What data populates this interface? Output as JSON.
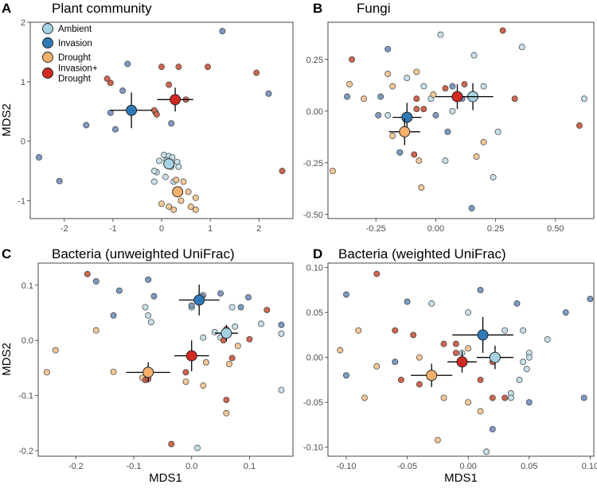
{
  "colors": {
    "Ambient": "#a6d3e4",
    "Invasion": "#2f7ab6",
    "Drought": "#f5b06c",
    "Invasion+Drought": "#d12a22"
  },
  "point_colors": {
    "Ambient": "#c6e0ea",
    "Invasion": "#7d9ac3",
    "Drought": "#f4c896",
    "Invasion+Drought": "#cd6650"
  },
  "legend": {
    "entries": [
      "Ambient",
      "Invasion",
      "Drought",
      "Invasion+\nDrought"
    ]
  },
  "shared_axes": {
    "xlabel": "MDS1",
    "ylabel": "MDS2"
  },
  "chart_data": [
    {
      "id": "A",
      "type": "scatter",
      "letter": "A",
      "title": "Plant community",
      "xlim": [
        -2.7,
        2.7
      ],
      "ylim": [
        -1.3,
        2.0
      ],
      "xticks": [
        -2,
        -1,
        0,
        1,
        2
      ],
      "xtick_labels": [
        "-2",
        "-1",
        "0",
        "1",
        "2"
      ],
      "yticks": [
        -1,
        0,
        1,
        2
      ],
      "ytick_labels": [
        "-1",
        "0",
        "1",
        "2"
      ],
      "points": {
        "Ambient": [
          [
            0.05,
            -0.23
          ],
          [
            0.15,
            -0.25
          ],
          [
            0.22,
            -0.27
          ],
          [
            0.1,
            -0.32
          ],
          [
            -0.05,
            -0.33
          ],
          [
            0.32,
            -0.35
          ],
          [
            0.2,
            -0.43
          ],
          [
            -0.1,
            -0.52
          ],
          [
            -0.15,
            -0.5
          ],
          [
            0.08,
            -0.6
          ],
          [
            -0.15,
            -0.68
          ],
          [
            0.25,
            -0.68
          ],
          [
            0.35,
            -0.43
          ]
        ],
        "Invasion": [
          [
            -2.52,
            -0.27
          ],
          [
            -2.1,
            -0.67
          ],
          [
            -1.55,
            0.27
          ],
          [
            -1.05,
            0.48
          ],
          [
            -0.95,
            0.2
          ],
          [
            -0.8,
            0.85
          ],
          [
            -0.7,
            1.3
          ],
          [
            1.25,
            1.85
          ],
          [
            2.2,
            0.8
          ],
          [
            0.2,
            0.3
          ],
          [
            -0.12,
            0.48
          ]
        ],
        "Drought": [
          [
            0.3,
            -0.65
          ],
          [
            0.45,
            -0.68
          ],
          [
            0.55,
            -0.85
          ],
          [
            0.7,
            -0.95
          ],
          [
            0.0,
            -1.05
          ],
          [
            0.15,
            -1.1
          ],
          [
            0.25,
            -1.15
          ],
          [
            0.6,
            -1.1
          ],
          [
            0.7,
            -1.15
          ],
          [
            0.4,
            -1.0
          ]
        ],
        "Invasion+Drought": [
          [
            -1.12,
            1.05
          ],
          [
            -1.05,
            0.98
          ],
          [
            -0.15,
            0.52
          ],
          [
            -0.1,
            0.45
          ],
          [
            0.0,
            1.25
          ],
          [
            0.35,
            1.25
          ],
          [
            0.95,
            1.25
          ],
          [
            1.95,
            1.15
          ],
          [
            2.48,
            -0.5
          ],
          [
            0.15,
            0.95
          ],
          [
            0.5,
            0.7
          ]
        ]
      },
      "centroids": {
        "Ambient": {
          "x": 0.15,
          "y": -0.38,
          "xerr": 0.0,
          "yerr": 0.0
        },
        "Invasion": {
          "x": -0.62,
          "y": 0.52,
          "xerr": 0.43,
          "yerr": 0.3
        },
        "Drought": {
          "x": 0.33,
          "y": -0.85,
          "xerr": 0.0,
          "yerr": 0.0
        },
        "Invasion+Drought": {
          "x": 0.28,
          "y": 0.7,
          "xerr": 0.37,
          "yerr": 0.2
        }
      }
    },
    {
      "id": "B",
      "type": "scatter",
      "letter": "B",
      "title": "Fungi",
      "xlim": [
        -0.45,
        0.66
      ],
      "ylim": [
        -0.52,
        0.43
      ],
      "xticks": [
        -0.25,
        0.0,
        0.25,
        0.5
      ],
      "xtick_labels": [
        "-0.25",
        "0.00",
        "0.25",
        "0.50"
      ],
      "yticks": [
        -0.5,
        -0.25,
        0.0,
        0.25
      ],
      "ytick_labels": [
        "-0.50",
        "-0.25",
        "0.00",
        "0.25"
      ],
      "points": {
        "Ambient": [
          [
            0.02,
            0.37
          ],
          [
            0.36,
            0.31
          ],
          [
            0.16,
            0.27
          ],
          [
            -0.12,
            0.16
          ],
          [
            -0.05,
            0.12
          ],
          [
            0.2,
            0.12
          ],
          [
            0.62,
            0.06
          ],
          [
            0.07,
            0.0
          ],
          [
            -0.2,
            -0.02
          ],
          [
            0.26,
            -0.1
          ],
          [
            0.04,
            -0.24
          ],
          [
            0.24,
            -0.32
          ],
          [
            -0.02,
            0.06
          ]
        ],
        "Invasion": [
          [
            -0.2,
            0.3
          ],
          [
            -0.37,
            0.07
          ],
          [
            -0.23,
            0.07
          ],
          [
            -0.24,
            -0.02
          ],
          [
            -0.15,
            -0.2
          ],
          [
            0.15,
            -0.47
          ],
          [
            0.07,
            0.12
          ],
          [
            0.11,
            0.06
          ],
          [
            0.05,
            -0.1
          ],
          [
            0.0,
            -0.02
          ]
        ],
        "Drought": [
          [
            -0.36,
            0.13
          ],
          [
            -0.2,
            0.18
          ],
          [
            -0.18,
            0.12
          ],
          [
            -0.3,
            0.06
          ],
          [
            -0.08,
            0.19
          ],
          [
            -0.07,
            -0.24
          ],
          [
            -0.06,
            -0.37
          ],
          [
            -0.43,
            -0.29
          ],
          [
            -0.18,
            -0.12
          ],
          [
            0.2,
            -0.15
          ],
          [
            0.17,
            -0.22
          ],
          [
            -0.01,
            0.08
          ]
        ],
        "Invasion+Drought": [
          [
            -0.35,
            0.25
          ],
          [
            -0.08,
            0.06
          ],
          [
            0.12,
            0.13
          ],
          [
            0.28,
            0.39
          ],
          [
            0.33,
            0.06
          ],
          [
            0.6,
            -0.07
          ],
          [
            0.04,
            0.11
          ],
          [
            -0.08,
            0.01
          ],
          [
            -0.09,
            -0.21
          ],
          [
            -0.05,
            0.01
          ]
        ]
      },
      "centroids": {
        "Ambient": {
          "x": 0.155,
          "y": 0.07,
          "xerr": 0.085,
          "yerr": 0.065
        },
        "Invasion": {
          "x": -0.12,
          "y": -0.03,
          "xerr": 0.06,
          "yerr": 0.07
        },
        "Drought": {
          "x": -0.13,
          "y": -0.1,
          "xerr": 0.065,
          "yerr": 0.065
        },
        "Invasion+Drought": {
          "x": 0.09,
          "y": 0.07,
          "xerr": 0.09,
          "yerr": 0.06
        }
      }
    },
    {
      "id": "C",
      "type": "scatter",
      "letter": "C",
      "title": "Bacteria (unweighted UniFrac)",
      "xlim": [
        -0.265,
        0.175
      ],
      "ylim": [
        -0.21,
        0.14
      ],
      "xticks": [
        -0.2,
        -0.1,
        0.0,
        0.1
      ],
      "xtick_labels": [
        "-0.2",
        "-0.1",
        "0.0",
        "0.1"
      ],
      "yticks": [
        -0.2,
        -0.1,
        0.0,
        0.1
      ],
      "ytick_labels": [
        "-0.2",
        "-0.1",
        "0.0",
        "0.1"
      ],
      "points": {
        "Ambient": [
          [
            -0.08,
            0.06
          ],
          [
            0.0,
            0.06
          ],
          [
            -0.075,
            0.045
          ],
          [
            -0.07,
            0.033
          ],
          [
            0.07,
            0.06
          ],
          [
            0.12,
            0.03
          ],
          [
            0.075,
            0.025
          ],
          [
            0.04,
            0.015
          ],
          [
            0.02,
            0.005
          ],
          [
            0.05,
            0.005
          ],
          [
            0.155,
            0.012
          ],
          [
            0.155,
            -0.09
          ],
          [
            0.01,
            -0.195
          ],
          [
            0.02,
            0.082
          ]
        ],
        "Invasion": [
          [
            -0.165,
            0.107
          ],
          [
            -0.125,
            0.09
          ],
          [
            -0.135,
            0.045
          ],
          [
            -0.075,
            0.11
          ],
          [
            -0.065,
            0.08
          ],
          [
            0.0,
            0.063
          ],
          [
            0.05,
            0.085
          ],
          [
            0.085,
            0.06
          ],
          [
            0.098,
            0.078
          ],
          [
            0.155,
            0.028
          ],
          [
            0.018,
            0.08
          ]
        ],
        "Drought": [
          [
            -0.25,
            -0.058
          ],
          [
            -0.235,
            -0.018
          ],
          [
            -0.165,
            0.018
          ],
          [
            -0.135,
            -0.057
          ],
          [
            -0.085,
            -0.068
          ],
          [
            0.025,
            -0.04
          ],
          [
            0.065,
            -0.043
          ],
          [
            0.02,
            -0.082
          ],
          [
            0.06,
            -0.132
          ],
          [
            -0.01,
            -0.075
          ],
          [
            0.08,
            -0.01
          ]
        ],
        "Invasion+Drought": [
          [
            -0.18,
            0.12
          ],
          [
            -0.08,
            -0.072
          ],
          [
            -0.075,
            -0.07
          ],
          [
            -0.01,
            -0.058
          ],
          [
            0.06,
            -0.108
          ],
          [
            0.07,
            -0.032
          ],
          [
            0.1,
            0.002
          ],
          [
            0.13,
            0.055
          ],
          [
            -0.035,
            -0.188
          ],
          [
            0.055,
            0.0
          ],
          [
            0.06,
            0.02
          ]
        ]
      },
      "centroids": {
        "Ambient": {
          "x": 0.06,
          "y": 0.013,
          "xerr": 0.02,
          "yerr": 0.015
        },
        "Invasion": {
          "x": 0.013,
          "y": 0.073,
          "xerr": 0.035,
          "yerr": 0.028
        },
        "Drought": {
          "x": -0.075,
          "y": -0.058,
          "xerr": 0.038,
          "yerr": 0.018
        },
        "Invasion+Drought": {
          "x": 0.0,
          "y": -0.028,
          "xerr": 0.03,
          "yerr": 0.028
        }
      }
    },
    {
      "id": "D",
      "type": "scatter",
      "letter": "D",
      "title": "Bacteria (weighted UniFrac)",
      "xlim": [
        -0.115,
        0.103
      ],
      "ylim": [
        -0.11,
        0.105
      ],
      "xticks": [
        -0.1,
        -0.05,
        0.0,
        0.05,
        0.1
      ],
      "xtick_labels": [
        "-0.10",
        "-0.05",
        "0.00",
        "0.05",
        "0.10"
      ],
      "yticks": [
        -0.1,
        -0.05,
        0.0,
        0.05,
        0.1
      ],
      "ytick_labels": [
        "-0.10",
        "-0.05",
        "0.00",
        "0.05",
        "0.10"
      ],
      "points": {
        "Ambient": [
          [
            -0.03,
            0.06
          ],
          [
            0.0,
            0.05
          ],
          [
            0.03,
            0.03
          ],
          [
            0.045,
            0.03
          ],
          [
            0.065,
            0.02
          ],
          [
            0.05,
            0.005
          ],
          [
            0.05,
            0.0
          ],
          [
            0.045,
            -0.005
          ],
          [
            0.048,
            -0.013
          ],
          [
            0.042,
            -0.025
          ],
          [
            0.035,
            -0.04
          ],
          [
            0.035,
            -0.045
          ],
          [
            0.015,
            -0.105
          ],
          [
            -0.005,
            0.005
          ]
        ],
        "Invasion": [
          [
            -0.1,
            0.07
          ],
          [
            -0.05,
            0.062
          ],
          [
            0.01,
            0.075
          ],
          [
            0.04,
            0.06
          ],
          [
            0.08,
            0.05
          ],
          [
            0.1,
            0.065
          ],
          [
            -0.1,
            -0.02
          ],
          [
            0.05,
            -0.05
          ],
          [
            0.095,
            -0.045
          ],
          [
            0.02,
            -0.08
          ],
          [
            -0.06,
            -0.005
          ]
        ],
        "Drought": [
          [
            -0.09,
            0.03
          ],
          [
            -0.105,
            0.008
          ],
          [
            -0.075,
            -0.01
          ],
          [
            -0.085,
            -0.045
          ],
          [
            -0.02,
            -0.045
          ],
          [
            0.0,
            -0.05
          ],
          [
            0.01,
            -0.06
          ],
          [
            -0.025,
            -0.092
          ],
          [
            -0.04,
            0.0
          ],
          [
            0.0,
            0.01
          ]
        ],
        "Invasion+Drought": [
          [
            -0.075,
            0.093
          ],
          [
            -0.06,
            0.03
          ],
          [
            -0.045,
            0.025
          ],
          [
            -0.02,
            0.015
          ],
          [
            -0.01,
            0.005
          ],
          [
            0.02,
            -0.005
          ],
          [
            -0.055,
            -0.025
          ],
          [
            -0.04,
            -0.03
          ],
          [
            0.02,
            -0.045
          ],
          [
            0.03,
            -0.045
          ],
          [
            -0.01,
            0.015
          ],
          [
            0.01,
            -0.025
          ]
        ]
      },
      "centroids": {
        "Ambient": {
          "x": 0.022,
          "y": 0.0,
          "xerr": 0.015,
          "yerr": 0.013
        },
        "Invasion": {
          "x": 0.012,
          "y": 0.025,
          "xerr": 0.025,
          "yerr": 0.02
        },
        "Drought": {
          "x": -0.03,
          "y": -0.02,
          "xerr": 0.017,
          "yerr": 0.013
        },
        "Invasion+Drought": {
          "x": -0.005,
          "y": -0.005,
          "xerr": 0.012,
          "yerr": 0.012
        }
      }
    }
  ]
}
